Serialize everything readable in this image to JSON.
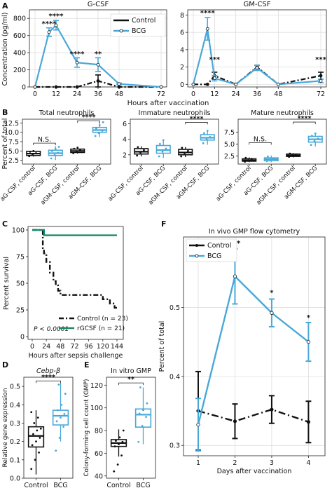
{
  "panel_letters": [
    "A",
    "B",
    "C",
    "D",
    "E",
    "F"
  ],
  "colors": {
    "control": "#111111",
    "bcg": "#4aa8d8",
    "rgcsf": "#1a8a6a",
    "grid": "#d9d9d9"
  },
  "chart_data": [
    {
      "id": "A-left",
      "panel": "A",
      "type": "line",
      "title": "G-CSF",
      "ylabel": "Concentration (pg/ml)",
      "xlabel": "Hours after vaccination",
      "x": [
        0,
        12,
        24,
        36,
        48,
        72
      ],
      "ylim": [
        0,
        900
      ],
      "yticks": [
        0,
        200,
        400,
        600,
        800
      ],
      "xticks": [
        0,
        12,
        24,
        36,
        48,
        72
      ],
      "grid": true,
      "legend": "top-right",
      "series": [
        {
          "name": "Control",
          "values": [
            0,
            0,
            0,
            70,
            0,
            0
          ],
          "err": [
            0,
            0,
            0,
            70,
            0,
            0
          ]
        },
        {
          "name": "BCG",
          "x": [
            0,
            8,
            12,
            24,
            36,
            48,
            72
          ],
          "values": [
            0,
            640,
            720,
            285,
            260,
            35,
            0
          ],
          "err": [
            0,
            50,
            55,
            55,
            80,
            10,
            0
          ]
        }
      ],
      "annotations": [
        {
          "x": 8,
          "y": 710,
          "text": "****"
        },
        {
          "x": 12,
          "y": 800,
          "text": "****"
        },
        {
          "x": 24,
          "y": 360,
          "text": "****"
        },
        {
          "x": 36,
          "y": 360,
          "text": "**"
        }
      ]
    },
    {
      "id": "A-right",
      "panel": "A",
      "type": "line",
      "title": "GM-CSF",
      "ylabel": "",
      "xlabel": "",
      "x": [
        0,
        8,
        12,
        24,
        36,
        48,
        72
      ],
      "ylim": [
        -0.3,
        8.6
      ],
      "yticks": [
        0,
        2,
        4,
        6,
        8
      ],
      "xticks": [
        0,
        12,
        24,
        36,
        48,
        72
      ],
      "grid": true,
      "series": [
        {
          "name": "Control",
          "values": [
            0,
            0,
            1.0,
            0,
            2.0,
            0,
            1.0
          ],
          "err": [
            0,
            0,
            0.4,
            0,
            0.2,
            0,
            0.4
          ]
        },
        {
          "name": "BCG",
          "values": [
            0,
            6.4,
            0.7,
            0,
            1.9,
            0,
            0.4
          ],
          "err": [
            0,
            1.3,
            0.3,
            0,
            0.3,
            0,
            0.2
          ]
        }
      ],
      "annotations": [
        {
          "x": 8,
          "y": 8.0,
          "text": "****"
        },
        {
          "x": 12,
          "y": 2.6,
          "text": "***"
        },
        {
          "x": 72,
          "y": 2.6,
          "text": "***"
        }
      ]
    },
    {
      "id": "B1",
      "panel": "B",
      "type": "box",
      "title": "Total neutrophils",
      "ylabel": "Percent of total",
      "categories": [
        "aG-CSF, control",
        "aG-CSF, BCG",
        "aGM-CSF, control",
        "aGM-CSF, BCG"
      ],
      "ylim": [
        1.5,
        13.5
      ],
      "yticks": [
        2.5,
        5.0,
        7.5,
        10.0,
        12.5
      ],
      "boxes": [
        {
          "min": 3.5,
          "q1": 3.8,
          "median": 4.3,
          "q3": 4.9,
          "max": 5.2,
          "color": "#111111",
          "points": [
            3.6,
            4.0,
            4.4,
            4.8,
            5.0
          ]
        },
        {
          "min": 2.6,
          "q1": 3.8,
          "median": 4.4,
          "q3": 5.2,
          "max": 6.3,
          "color": "#4aa8d8",
          "points": [
            3.0,
            3.9,
            4.5,
            5.0,
            5.6,
            6.1
          ]
        },
        {
          "min": 4.3,
          "q1": 4.6,
          "median": 5.0,
          "q3": 5.5,
          "max": 6.0,
          "color": "#111111",
          "points": [
            4.4,
            4.8,
            5.2,
            5.6,
            5.9
          ]
        },
        {
          "min": 8.7,
          "q1": 10.0,
          "median": 10.6,
          "q3": 11.3,
          "max": 12.8,
          "color": "#4aa8d8",
          "points": [
            9.0,
            9.8,
            10.4,
            11.0,
            11.9,
            12.7
          ]
        }
      ],
      "brackets": [
        {
          "from": 0,
          "to": 1,
          "y": 7.1,
          "text": "N.S."
        },
        {
          "from": 2,
          "to": 3,
          "y": 13.1,
          "text": "****"
        }
      ]
    },
    {
      "id": "B2",
      "panel": "B",
      "type": "box",
      "title": "Immature neutrophils",
      "ylabel": "",
      "categories": [
        "aG-CSF, control",
        "aG-CSF, BCG",
        "aGM-CSF, control",
        "aGM-CSF, BCG"
      ],
      "ylim": [
        0.8,
        6.6
      ],
      "yticks": [
        2,
        4,
        6
      ],
      "boxes": [
        {
          "min": 1.8,
          "q1": 2.1,
          "median": 2.4,
          "q3": 2.8,
          "max": 3.1,
          "color": "#111111",
          "points": [
            1.9,
            2.3,
            2.6,
            3.0
          ]
        },
        {
          "min": 1.6,
          "q1": 2.2,
          "median": 2.6,
          "q3": 3.2,
          "max": 4.0,
          "color": "#4aa8d8",
          "points": [
            1.8,
            2.4,
            2.8,
            3.4,
            3.9
          ]
        },
        {
          "min": 1.7,
          "q1": 2.0,
          "median": 2.3,
          "q3": 2.7,
          "max": 3.0,
          "color": "#111111",
          "points": [
            1.8,
            2.2,
            2.5,
            2.9
          ]
        },
        {
          "min": 3.3,
          "q1": 3.9,
          "median": 4.2,
          "q3": 4.6,
          "max": 5.2,
          "color": "#4aa8d8",
          "points": [
            3.5,
            4.0,
            4.3,
            4.8,
            5.1
          ]
        }
      ],
      "brackets": [
        {
          "from": 2,
          "to": 3,
          "y": 6.2,
          "text": "****"
        }
      ]
    },
    {
      "id": "B3",
      "panel": "B",
      "type": "box",
      "title": "Mature neutrophils",
      "ylabel": "",
      "categories": [
        "aG-CSF, control",
        "aG-CSF, BCG",
        "aGM-CSF, control",
        "aGM-CSF, BCG"
      ],
      "ylim": [
        0.8,
        10.2
      ],
      "yticks": [
        2.5,
        5.0,
        7.5
      ],
      "boxes": [
        {
          "min": 1.2,
          "q1": 1.4,
          "median": 1.6,
          "q3": 1.9,
          "max": 2.2,
          "color": "#111111",
          "points": [
            1.3,
            1.6,
            1.9,
            2.1
          ]
        },
        {
          "min": 1.2,
          "q1": 1.5,
          "median": 1.8,
          "q3": 2.1,
          "max": 2.6,
          "color": "#4aa8d8",
          "points": [
            1.4,
            1.7,
            2.0,
            2.4
          ]
        },
        {
          "min": 2.2,
          "q1": 2.4,
          "median": 2.6,
          "q3": 2.9,
          "max": 3.1,
          "color": "#111111",
          "points": [
            2.3,
            2.6,
            2.8,
            3.0
          ]
        },
        {
          "min": 4.5,
          "q1": 5.4,
          "median": 6.0,
          "q3": 6.6,
          "max": 7.4,
          "color": "#4aa8d8",
          "points": [
            4.8,
            5.6,
            6.1,
            6.7,
            7.2
          ]
        }
      ],
      "brackets": [
        {
          "from": 0,
          "to": 1,
          "y": 5.3,
          "text": "N.S."
        },
        {
          "from": 2,
          "to": 3,
          "y": 9.6,
          "text": "****"
        }
      ]
    },
    {
      "id": "C",
      "panel": "C",
      "type": "line",
      "title": "",
      "ylabel": "Percent survival",
      "xlabel": "Hours after sepsis challenge",
      "xlim": [
        0,
        150
      ],
      "ylim": [
        0,
        100
      ],
      "xticks": [
        0,
        24,
        48,
        72,
        96,
        120,
        144
      ],
      "yticks": [
        0,
        25,
        50,
        75,
        100
      ],
      "series": [
        {
          "name": "Control (n = 23)",
          "style": "dashed",
          "x": [
            0,
            18,
            18,
            20,
            20,
            24,
            24,
            30,
            30,
            36,
            36,
            40,
            40,
            44,
            44,
            48,
            48,
            120,
            120,
            132,
            132,
            140,
            140,
            144
          ],
          "values": [
            100,
            100,
            83,
            83,
            78,
            78,
            70,
            70,
            60,
            60,
            52,
            52,
            48,
            48,
            43,
            43,
            39,
            39,
            35,
            35,
            31,
            31,
            27,
            27
          ]
        },
        {
          "name": "rGCSF (n = 21)",
          "style": "solid",
          "x": [
            0,
            20,
            20,
            144
          ],
          "values": [
            100,
            100,
            95,
            95
          ]
        }
      ],
      "annotation": "P < 0.0001"
    },
    {
      "id": "D",
      "panel": "D",
      "type": "box",
      "title": "Cebp-β",
      "ylabel": "Relative gene expression",
      "categories": [
        "Control",
        "BCG"
      ],
      "ylim": [
        0,
        0.55
      ],
      "yticks": [
        0.0,
        0.1,
        0.2,
        0.3,
        0.4,
        0.5
      ],
      "boxes": [
        {
          "min": 0.02,
          "q1": 0.17,
          "median": 0.23,
          "q3": 0.28,
          "max": 0.37,
          "color": "#111111",
          "points": [
            0.05,
            0.1,
            0.14,
            0.18,
            0.2,
            0.22,
            0.24,
            0.26,
            0.27,
            0.3,
            0.33,
            0.36
          ]
        },
        {
          "min": 0.2,
          "q1": 0.29,
          "median": 0.34,
          "q3": 0.37,
          "max": 0.52,
          "color": "#4aa8d8",
          "points": [
            0.15,
            0.22,
            0.28,
            0.31,
            0.33,
            0.35,
            0.37,
            0.4,
            0.46,
            0.51
          ]
        }
      ],
      "brackets": [
        {
          "from": 0,
          "to": 1,
          "y": 0.53,
          "text": "****"
        }
      ]
    },
    {
      "id": "E",
      "panel": "E",
      "type": "box",
      "title": "In vitro GMP",
      "ylabel": "Colony-forming cell count (GMP)",
      "categories": [
        "Control",
        "BCG"
      ],
      "ylim": [
        38,
        127
      ],
      "yticks": [
        40,
        60,
        80,
        100,
        120
      ],
      "boxes": [
        {
          "min": 57,
          "q1": 66,
          "median": 69,
          "q3": 72,
          "max": 81,
          "color": "#111111",
          "points": [
            44,
            50,
            58,
            66,
            68,
            70,
            71,
            74,
            80
          ]
        },
        {
          "min": 68,
          "q1": 83,
          "median": 94,
          "q3": 99,
          "max": 118,
          "color": "#4aa8d8",
          "points": [
            70,
            84,
            92,
            95,
            98,
            104,
            118
          ]
        }
      ],
      "brackets": [
        {
          "from": 0,
          "to": 1,
          "y": 122,
          "text": "**"
        }
      ]
    },
    {
      "id": "F",
      "panel": "F",
      "type": "line",
      "title": "In vivo GMP flow cytometry",
      "ylabel": "Percent of total",
      "xlabel": "Days after vaccination",
      "x": [
        1,
        2,
        3,
        4
      ],
      "xlim": [
        0.6,
        4.45
      ],
      "ylim": [
        0.285,
        0.602
      ],
      "yticks": [
        0.3,
        0.4,
        0.5
      ],
      "xticks": [
        1,
        2,
        3,
        4
      ],
      "grid": true,
      "legend": "top-left",
      "series": [
        {
          "name": "Control",
          "style": "dashdot",
          "values": [
            0.35,
            0.335,
            0.352,
            0.334
          ],
          "err": [
            0.057,
            0.025,
            0.02,
            0.03
          ]
        },
        {
          "name": "BCG",
          "style": "solid",
          "values": [
            0.33,
            0.545,
            0.492,
            0.45
          ],
          "err": [
            0.038,
            0.04,
            0.02,
            0.028
          ]
        }
      ],
      "annotations": [
        {
          "x": 2,
          "y": 0.59,
          "text": "***"
        },
        {
          "x": 3,
          "y": 0.518,
          "text": "*"
        },
        {
          "x": 4,
          "y": 0.482,
          "text": "*"
        }
      ]
    }
  ]
}
